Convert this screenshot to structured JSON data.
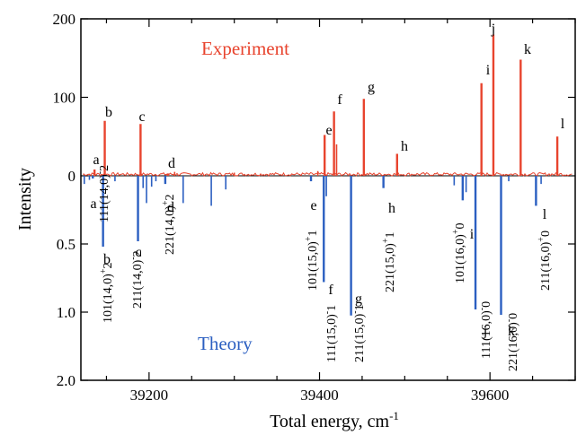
{
  "chart_data": {
    "type": "line",
    "xlabel": "Total energy, cm",
    "xlabel_superscript": "-1",
    "ylabel": "Intensity",
    "x_ticks": [
      "39200",
      "39400",
      "39600"
    ],
    "x_tick_values": [
      39200,
      39400,
      39600
    ],
    "xlim": [
      39120,
      39700
    ],
    "y_ticks_top": [
      "200",
      "100",
      "0"
    ],
    "y_ticks_bottom": [
      "0.5",
      "1.0",
      "2.0"
    ],
    "colors": {
      "experiment": "#e8442e",
      "theory": "#2b5fc1",
      "axes": "#000000"
    },
    "experiment": {
      "annotation": "Experiment",
      "peaks": [
        {
          "label": "a",
          "x": 39136,
          "y": 8
        },
        {
          "label": "b",
          "x": 39148,
          "y": 70
        },
        {
          "label": "c",
          "x": 39190,
          "y": 66
        },
        {
          "label": "d",
          "x": 39222,
          "y": 3
        },
        {
          "label": "e",
          "x": 39406,
          "y": 52
        },
        {
          "label": "f",
          "x": 39417,
          "y": 82
        },
        {
          "label": "g",
          "x": 39452,
          "y": 98
        },
        {
          "label": "h",
          "x": 39491,
          "y": 28
        },
        {
          "label": "i",
          "x": 39590,
          "y": 118
        },
        {
          "label": "j",
          "x": 39604,
          "y": 180
        },
        {
          "label": "k",
          "x": 39636,
          "y": 148
        },
        {
          "label": "l",
          "x": 39679,
          "y": 50
        }
      ]
    },
    "theory": {
      "annotation": "Theory",
      "peaks": [
        {
          "label": "a",
          "assignment": "111(14,0)",
          "sup": "-",
          "tail": "2",
          "x": 39134,
          "y": 0.02
        },
        {
          "label": "b",
          "assignment": "101(14,0)",
          "sup": "+",
          "tail": "2",
          "x": 39146,
          "y": 0.52
        },
        {
          "label": "c",
          "assignment": "211(14,0)",
          "sup": "-",
          "tail": "2",
          "x": 39187,
          "y": 0.48
        },
        {
          "label": "d",
          "assignment": "221(14,0)",
          "sup": "+",
          "tail": "2",
          "x": 39219,
          "y": 0.06
        },
        {
          "label": "e",
          "assignment": "101(15,0)",
          "sup": "+",
          "tail": "1",
          "x": 39390,
          "y": 0.04
        },
        {
          "label": "f",
          "assignment": "111(15,0)",
          "sup": "-",
          "tail": "1",
          "x": 39405,
          "y": 0.78
        },
        {
          "label": "g",
          "assignment": "211(15,0)",
          "sup": "-",
          "tail": "1",
          "x": 39437,
          "y": 1.05
        },
        {
          "label": "h",
          "assignment": "221(15,0)",
          "sup": "+",
          "tail": "1",
          "x": 39475,
          "y": 0.09
        },
        {
          "label": "i",
          "assignment": "101(16,0)",
          "sup": "+",
          "tail": "0",
          "x": 39568,
          "y": 0.18
        },
        {
          "label": "j",
          "assignment": "111(16,0)",
          "sup": "-",
          "tail": "0",
          "x": 39583,
          "y": 0.98
        },
        {
          "label": "k",
          "assignment": "221(16,0)",
          "sup": "-",
          "tail": "0",
          "x": 39613,
          "y": 1.04
        },
        {
          "label": "l",
          "assignment": "211(16,0)",
          "sup": "+",
          "tail": "0",
          "x": 39654,
          "y": 0.22
        }
      ]
    }
  }
}
